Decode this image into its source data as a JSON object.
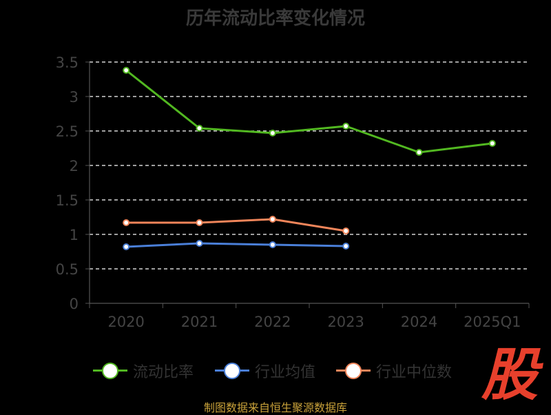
{
  "title": "历年流动比率变化情况",
  "colors": {
    "background": "#000000",
    "grid": "#ffffff",
    "axis": "#555555",
    "tick_text": "#444444",
    "current_ratio": "#52b821",
    "industry_mean": "#4a7fd8",
    "industry_median": "#f0855a"
  },
  "legend": [
    {
      "label": "流动比率",
      "color": "#52b821",
      "icon": "circle-line-icon"
    },
    {
      "label": "行业均值",
      "color": "#4a7fd8",
      "icon": "circle-line-icon"
    },
    {
      "label": "行业中位数",
      "color": "#f0855a",
      "icon": "circle-line-icon"
    }
  ],
  "source": "制图数据来自恒生聚源数据库",
  "logo_text": "股",
  "chart_data": {
    "type": "line",
    "title": "历年流动比率变化情况",
    "categories": [
      "2020",
      "2021",
      "2022",
      "2023",
      "2024",
      "2025Q1"
    ],
    "y_ticks": [
      "0",
      "0.5",
      "1",
      "1.5",
      "2",
      "2.5",
      "3",
      "3.5"
    ],
    "ylim": [
      0,
      3.5
    ],
    "grid": "horizontal dashed",
    "legend_position": "bottom",
    "series": [
      {
        "name": "流动比率",
        "color": "#52b821",
        "values": [
          3.38,
          2.54,
          2.47,
          2.57,
          2.19,
          2.32
        ]
      },
      {
        "name": "行业均值",
        "color": "#4a7fd8",
        "values": [
          0.82,
          0.87,
          0.85,
          0.83,
          null,
          null
        ]
      },
      {
        "name": "行业中位数",
        "color": "#f0855a",
        "values": [
          1.17,
          1.17,
          1.22,
          1.05,
          null,
          null
        ]
      }
    ]
  }
}
